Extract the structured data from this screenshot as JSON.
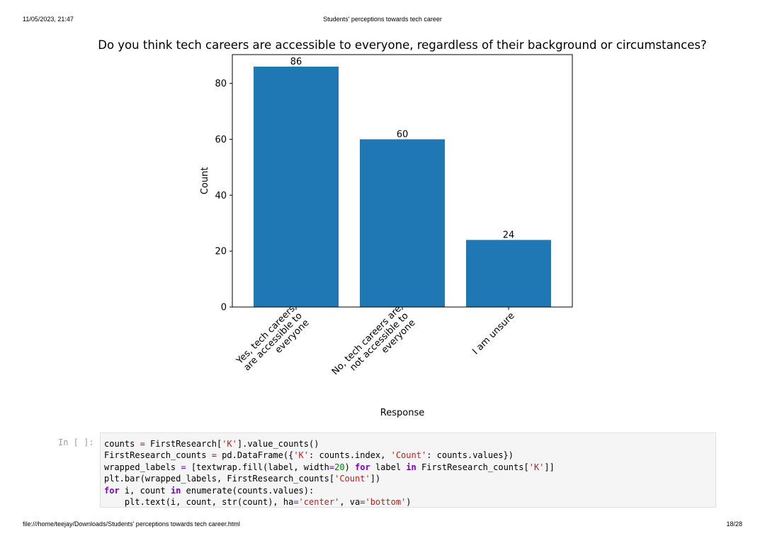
{
  "page": {
    "header_date": "11/05/2023, 21:47",
    "header_title": "Students' perceptions towards tech career",
    "footer_path": "file:///home/teejay/Downloads/Students' perceptions towards tech career.html",
    "footer_page": "18/28"
  },
  "colors": {
    "bar": "#1f77b4"
  },
  "chart_data": {
    "type": "bar",
    "title": "Do you think tech careers are accessible to everyone, regardless of their background or circumstances?",
    "xlabel": "Response",
    "ylabel": "Count",
    "categories": [
      [
        "Yes, tech careers",
        "are accessible to",
        "everyone"
      ],
      [
        "No, tech careers are",
        "not accessible to",
        "everyone"
      ],
      [
        "I am unsure"
      ]
    ],
    "values": [
      86,
      60,
      24
    ],
    "data_labels": [
      "86",
      "60",
      "24"
    ],
    "yticks": [
      0,
      20,
      40,
      60,
      80
    ],
    "ylim": [
      0,
      90.3
    ],
    "grid": false,
    "legend": "none"
  },
  "code_cell": {
    "prompt": "In [ ]:",
    "lines": [
      "counts = FirstResearch['K'].value_counts()",
      "FirstResearch_counts = pd.DataFrame({'K': counts.index, 'Count': counts.values})",
      "wrapped_labels = [textwrap.fill(label, width=20) for label in FirstResearch_counts['K']]",
      "plt.bar(wrapped_labels, FirstResearch_counts['Count'])",
      "for i, count in enumerate(counts.values):",
      "    plt.text(i, count, str(count), ha='center', va='bottom')"
    ]
  }
}
